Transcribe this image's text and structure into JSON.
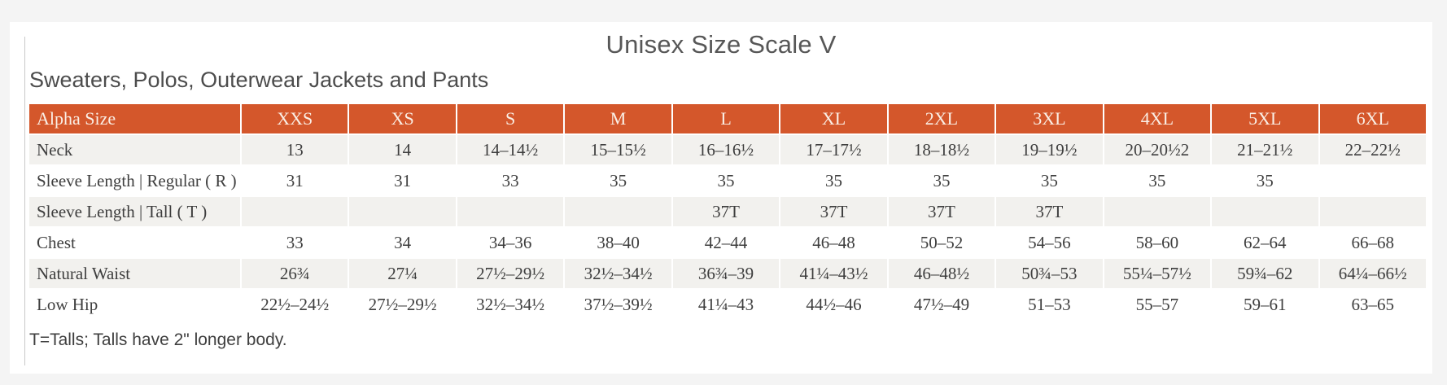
{
  "page": {
    "title": "Unisex Size Scale V",
    "subtitle": "Sweaters, Polos, Outerwear Jackets and Pants",
    "footnote": "T=Talls; Talls have 2\" longer body."
  },
  "colors": {
    "header_bg": "#d4572b",
    "header_text": "#faefe6",
    "stripe_bg": "#f2f1ee",
    "cell_text": "#3e3e3e",
    "page_bg": "#f4f4f4",
    "card_bg": "#ffffff",
    "title_text": "#575757"
  },
  "table": {
    "columns": [
      "Alpha Size",
      "XXS",
      "XS",
      "S",
      "M",
      "L",
      "XL",
      "2XL",
      "3XL",
      "4XL",
      "5XL",
      "6XL"
    ],
    "rows": [
      {
        "label": "Neck",
        "values": [
          "13",
          "14",
          "14–14½",
          "15–15½",
          "16–16½",
          "17–17½",
          "18–18½",
          "19–19½",
          "20–20½2",
          "21–21½",
          "22–22½"
        ]
      },
      {
        "label": "Sleeve Length | Regular ( R )",
        "values": [
          "31",
          "31",
          "33",
          "35",
          "35",
          "35",
          "35",
          "35",
          "35",
          "35",
          ""
        ]
      },
      {
        "label": "Sleeve Length | Tall ( T )",
        "values": [
          "",
          "",
          "",
          "",
          "37T",
          "37T",
          "37T",
          "37T",
          "",
          "",
          ""
        ]
      },
      {
        "label": "Chest",
        "values": [
          "33",
          "34",
          "34–36",
          "38–40",
          "42–44",
          "46–48",
          "50–52",
          "54–56",
          "58–60",
          "62–64",
          "66–68"
        ]
      },
      {
        "label": "Natural Waist",
        "values": [
          "26¾",
          "27¼",
          "27½–29½",
          "32½–34½",
          "36¾–39",
          "41¼–43½",
          "46–48½",
          "50¾–53",
          "55¼–57½",
          "59¾–62",
          "64¼–66½"
        ]
      },
      {
        "label": "Low Hip",
        "values": [
          "22½–24½",
          "27½–29½",
          "32½–34½",
          "37½–39½",
          "41¼–43",
          "44½–46",
          "47½–49",
          "51–53",
          "55–57",
          "59–61",
          "63–65"
        ]
      }
    ]
  }
}
